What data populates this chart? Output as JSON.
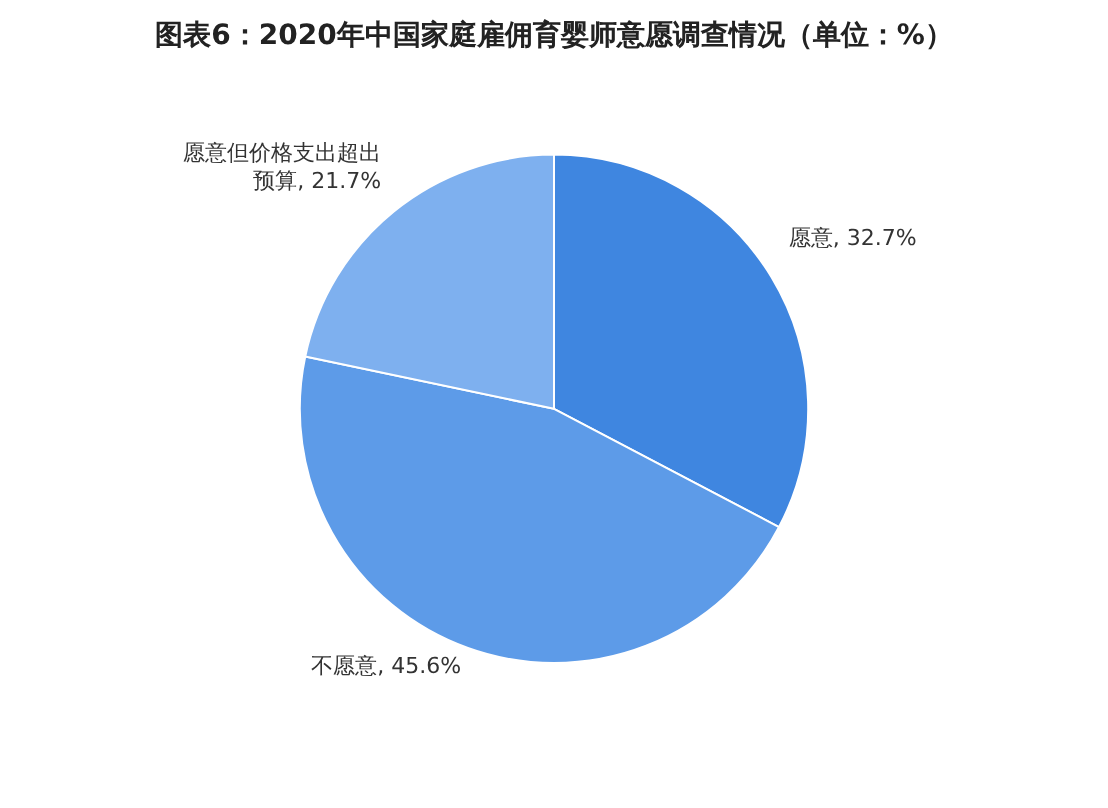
{
  "chart_data": {
    "type": "pie",
    "title": "图表6：2020年中国家庭雇佣育婴师意愿调查情况（单位：%）",
    "categories": [
      "愿意",
      "不愿意",
      "愿意但价格支出超出预算"
    ],
    "values": [
      32.7,
      45.6,
      21.7
    ],
    "value_labels": [
      "32.7%",
      "45.6%",
      "21.7%"
    ],
    "colors": [
      "#3f86e0",
      "#5d9be8",
      "#7eb0ef"
    ],
    "legend": false
  }
}
